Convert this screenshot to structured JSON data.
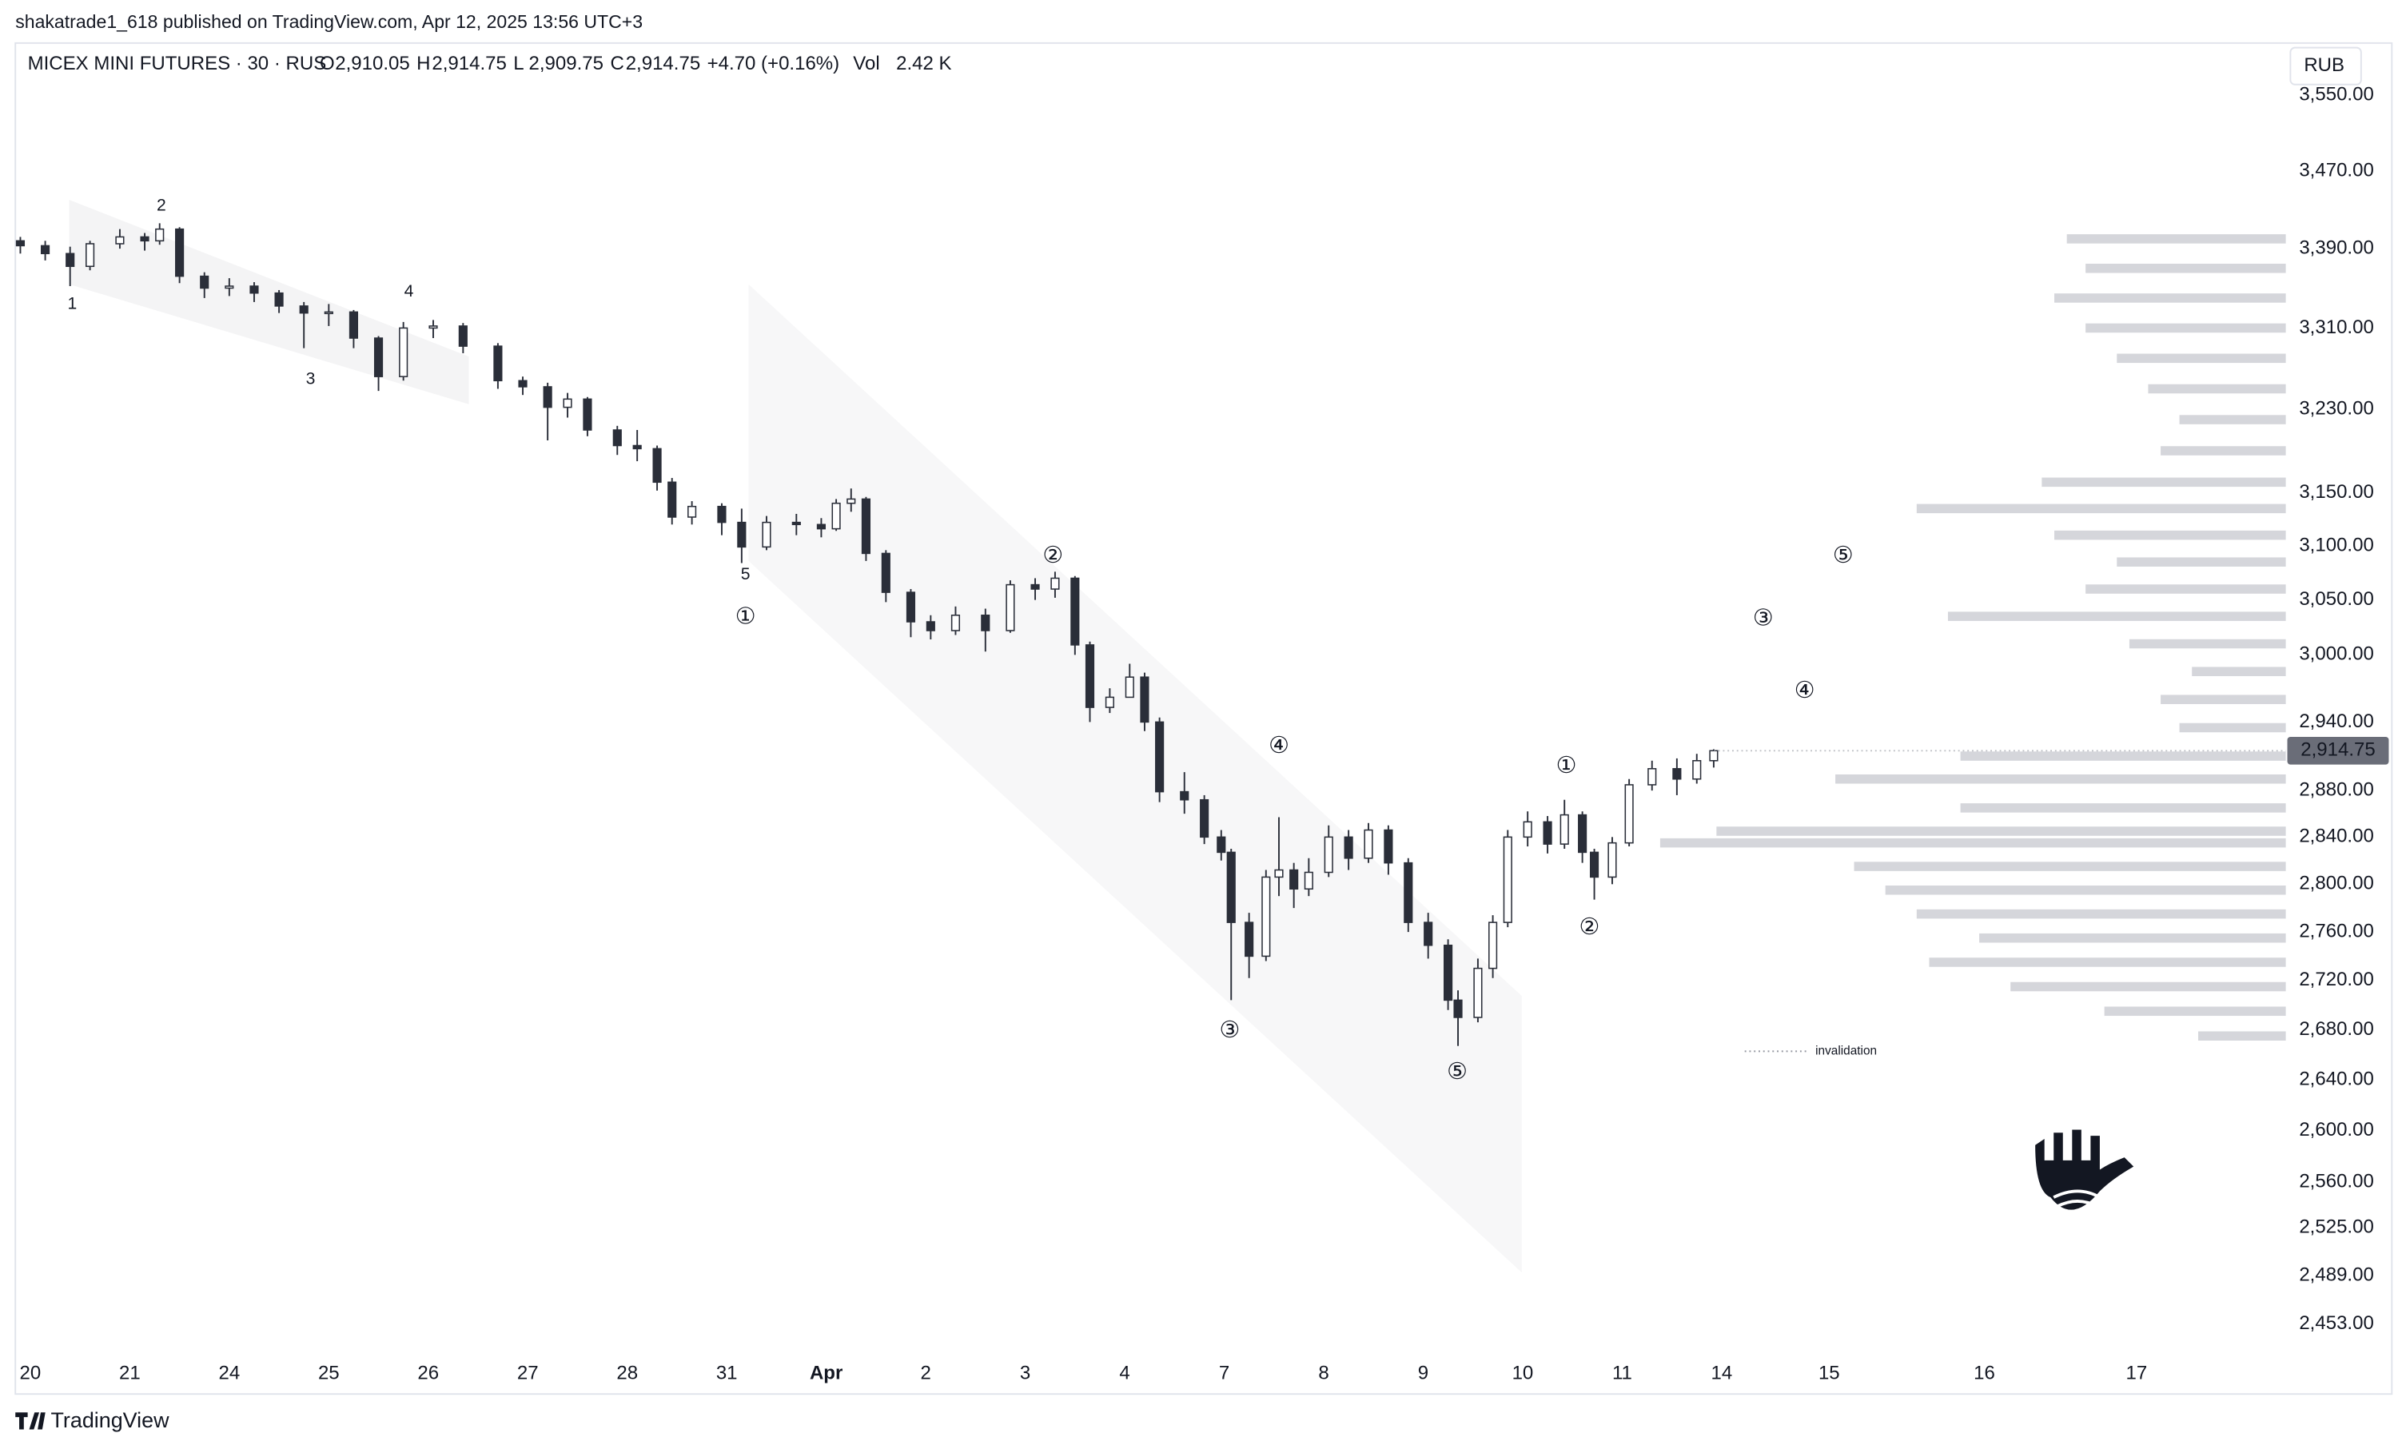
{
  "header": {
    "publisher": "shakatrade1_618 published on TradingView.com, Apr 12, 2025 13:56 UTC+3"
  },
  "footer": {
    "brand": "TradingView"
  },
  "chart_data": {
    "type": "candlestick",
    "title": "MICEX MINI FUTURES · 30 · RUS",
    "legend": [
      {
        "label": "O",
        "value": "2,910.05"
      },
      {
        "label": "H",
        "value": "2,914.75"
      },
      {
        "label": "L",
        "value": "2,909.75"
      },
      {
        "label": "C",
        "value": "2,914.75"
      }
    ],
    "change": "+4.70 (+0.16%)",
    "volume": {
      "label": "Vol",
      "value": "2.42 K"
    },
    "currency": "RUB",
    "log_scale": true,
    "grid": false,
    "last_price": {
      "value": 2914.75,
      "label": "2,914.75"
    },
    "xlim": [
      -0.15,
      22.67
    ],
    "ylim": [
      2432,
      3603
    ],
    "xticks": [
      {
        "value": 0,
        "label": "20"
      },
      {
        "value": 1,
        "label": "21"
      },
      {
        "value": 2,
        "label": "24"
      },
      {
        "value": 3,
        "label": "25"
      },
      {
        "value": 4,
        "label": "26"
      },
      {
        "value": 5,
        "label": "27"
      },
      {
        "value": 6,
        "label": "28"
      },
      {
        "value": 7,
        "label": "31"
      },
      {
        "value": 8,
        "label": "Apr"
      },
      {
        "value": 9,
        "label": "2"
      },
      {
        "value": 10,
        "label": "3"
      },
      {
        "value": 11,
        "label": "4"
      },
      {
        "value": 12,
        "label": "7"
      },
      {
        "value": 13,
        "label": "8"
      },
      {
        "value": 14,
        "label": "9"
      },
      {
        "value": 15,
        "label": "10"
      },
      {
        "value": 16,
        "label": "11"
      },
      {
        "value": 17,
        "label": "14"
      },
      {
        "value": 18.08,
        "label": "15"
      },
      {
        "value": 19.64,
        "label": "16"
      },
      {
        "value": 21.17,
        "label": "17"
      }
    ],
    "yticks": [
      {
        "value": 3550,
        "label": "3,550.00"
      },
      {
        "value": 3470,
        "label": "3,470.00"
      },
      {
        "value": 3390,
        "label": "3,390.00"
      },
      {
        "value": 3310,
        "label": "3,310.00"
      },
      {
        "value": 3230,
        "label": "3,230.00"
      },
      {
        "value": 3150,
        "label": "3,150.00"
      },
      {
        "value": 3100,
        "label": "3,100.00"
      },
      {
        "value": 3050,
        "label": "3,050.00"
      },
      {
        "value": 3000,
        "label": "3,000.00"
      },
      {
        "value": 2940,
        "label": "2,940.00"
      },
      {
        "value": 2880,
        "label": "2,880.00"
      },
      {
        "value": 2840,
        "label": "2,840.00"
      },
      {
        "value": 2800,
        "label": "2,800.00"
      },
      {
        "value": 2760,
        "label": "2,760.00"
      },
      {
        "value": 2720,
        "label": "2,720.00"
      },
      {
        "value": 2680,
        "label": "2,680.00"
      },
      {
        "value": 2640,
        "label": "2,640.00"
      },
      {
        "value": 2600,
        "label": "2,600.00"
      },
      {
        "value": 2560,
        "label": "2,560.00"
      },
      {
        "value": 2525,
        "label": "2,525.00"
      },
      {
        "value": 2489,
        "label": "2,489.00"
      },
      {
        "value": 2453,
        "label": "2,453.00"
      }
    ],
    "up_color": "#ffffff",
    "down_color": "#2a2e39",
    "wick_color": "#2a2e39",
    "x": [
      -0.1,
      0.15,
      0.4,
      0.6,
      0.9,
      1.15,
      1.3,
      1.5,
      1.75,
      2.0,
      2.25,
      2.5,
      2.75,
      3.0,
      3.25,
      3.5,
      3.75,
      4.05,
      4.35,
      4.7,
      4.95,
      5.2,
      5.4,
      5.6,
      5.9,
      6.1,
      6.3,
      6.45,
      6.65,
      6.95,
      7.15,
      7.4,
      7.7,
      7.95,
      8.1,
      8.25,
      8.4,
      8.6,
      8.85,
      9.05,
      9.3,
      9.6,
      9.85,
      10.1,
      10.3,
      10.5,
      10.65,
      10.85,
      11.05,
      11.2,
      11.35,
      11.6,
      11.8,
      11.97,
      12.07,
      12.25,
      12.42,
      12.55,
      12.7,
      12.85,
      13.05,
      13.25,
      13.45,
      13.65,
      13.85,
      14.05,
      14.25,
      14.35,
      14.55,
      14.7,
      14.85,
      15.05,
      15.25,
      15.42,
      15.6,
      15.72,
      15.9,
      16.07,
      16.3,
      16.55,
      16.75,
      16.92
    ],
    "open": [
      3398,
      3393,
      3385,
      3372,
      3395,
      3402,
      3398,
      3410,
      3362,
      3350,
      3352,
      3345,
      3332,
      3325,
      3326,
      3300,
      3262,
      3310,
      3312,
      3292,
      3258,
      3252,
      3232,
      3240,
      3210,
      3195,
      3192,
      3160,
      3127,
      3137,
      3122,
      3099,
      3122,
      3120,
      3116,
      3140,
      3144,
      3093,
      3057,
      3030,
      3022,
      3036,
      3022,
      3064,
      3060,
      3070,
      3009,
      2953,
      2962,
      2980,
      2940,
      2879,
      2872,
      2840,
      2827,
      2768,
      2740,
      2806,
      2812,
      2796,
      2810,
      2840,
      2822,
      2846,
      2818,
      2768,
      2749,
      2704,
      2690,
      2730,
      2768,
      2840,
      2853,
      2834,
      2859,
      2827,
      2806,
      2835,
      2885,
      2899,
      2890,
      2906
    ],
    "high": [
      3402,
      3398,
      3392,
      3398,
      3410,
      3406,
      3416,
      3412,
      3366,
      3360,
      3356,
      3348,
      3336,
      3334,
      3328,
      3302,
      3316,
      3318,
      3315,
      3295,
      3262,
      3256,
      3246,
      3242,
      3214,
      3210,
      3195,
      3164,
      3142,
      3140,
      3135,
      3128,
      3130,
      3126,
      3144,
      3154,
      3146,
      3096,
      3060,
      3036,
      3044,
      3042,
      3068,
      3070,
      3076,
      3072,
      3012,
      2970,
      2992,
      2984,
      2944,
      2896,
      2876,
      2846,
      2830,
      2776,
      2812,
      2857,
      2818,
      2822,
      2850,
      2846,
      2852,
      2850,
      2822,
      2776,
      2754,
      2712,
      2738,
      2774,
      2846,
      2862,
      2858,
      2872,
      2862,
      2830,
      2840,
      2890,
      2906,
      2908,
      2912,
      2916
    ],
    "low": [
      3385,
      3378,
      3352,
      3368,
      3390,
      3388,
      3394,
      3355,
      3340,
      3342,
      3336,
      3325,
      3290,
      3312,
      3290,
      3248,
      3258,
      3300,
      3285,
      3250,
      3244,
      3200,
      3222,
      3204,
      3186,
      3180,
      3152,
      3120,
      3120,
      3110,
      3084,
      3096,
      3110,
      3108,
      3114,
      3132,
      3086,
      3048,
      3016,
      3014,
      3018,
      3003,
      3020,
      3050,
      3052,
      3000,
      2940,
      2948,
      2966,
      2932,
      2870,
      2860,
      2834,
      2820,
      2704,
      2722,
      2736,
      2790,
      2780,
      2790,
      2806,
      2812,
      2818,
      2808,
      2760,
      2738,
      2696,
      2667,
      2686,
      2722,
      2764,
      2832,
      2826,
      2830,
      2818,
      2787,
      2800,
      2832,
      2880,
      2876,
      2886,
      2900
    ],
    "close": [
      3393,
      3385,
      3372,
      3395,
      3402,
      3398,
      3410,
      3362,
      3350,
      3352,
      3345,
      3332,
      3325,
      3326,
      3300,
      3262,
      3310,
      3312,
      3292,
      3258,
      3252,
      3232,
      3240,
      3210,
      3195,
      3192,
      3160,
      3127,
      3137,
      3122,
      3099,
      3122,
      3120,
      3116,
      3140,
      3144,
      3093,
      3057,
      3030,
      3022,
      3036,
      3022,
      3064,
      3060,
      3070,
      3009,
      2953,
      2962,
      2980,
      2940,
      2879,
      2872,
      2840,
      2827,
      2768,
      2740,
      2806,
      2812,
      2796,
      2810,
      2840,
      2822,
      2846,
      2818,
      2768,
      2749,
      2704,
      2690,
      2730,
      2768,
      2840,
      2853,
      2834,
      2859,
      2827,
      2806,
      2835,
      2885,
      2899,
      2890,
      2906,
      2914.75
    ],
    "volume_profile": {
      "color": "#b2b5be",
      "prices": [
        3400,
        3370,
        3340,
        3310,
        3280,
        3250,
        3220,
        3190,
        3160,
        3135,
        3110,
        3085,
        3060,
        3035,
        3010,
        2985,
        2960,
        2935,
        2910,
        2890,
        2865,
        2845,
        2835,
        2815,
        2795,
        2775,
        2755,
        2735,
        2715,
        2695,
        2675
      ],
      "values": [
        35,
        32,
        37,
        32,
        27,
        22,
        17,
        20,
        39,
        59,
        37,
        27,
        32,
        54,
        25,
        15,
        20,
        17,
        52,
        72,
        52,
        91,
        100,
        69,
        64,
        59,
        49,
        57,
        44,
        29,
        14
      ]
    },
    "wave_labels": [
      "1",
      "2",
      "3",
      "4",
      "5",
      "①",
      "②",
      "③",
      "④",
      "⑤",
      "①",
      "②",
      "③",
      "④",
      "⑤"
    ],
    "invalidation_label": "invalidation"
  }
}
